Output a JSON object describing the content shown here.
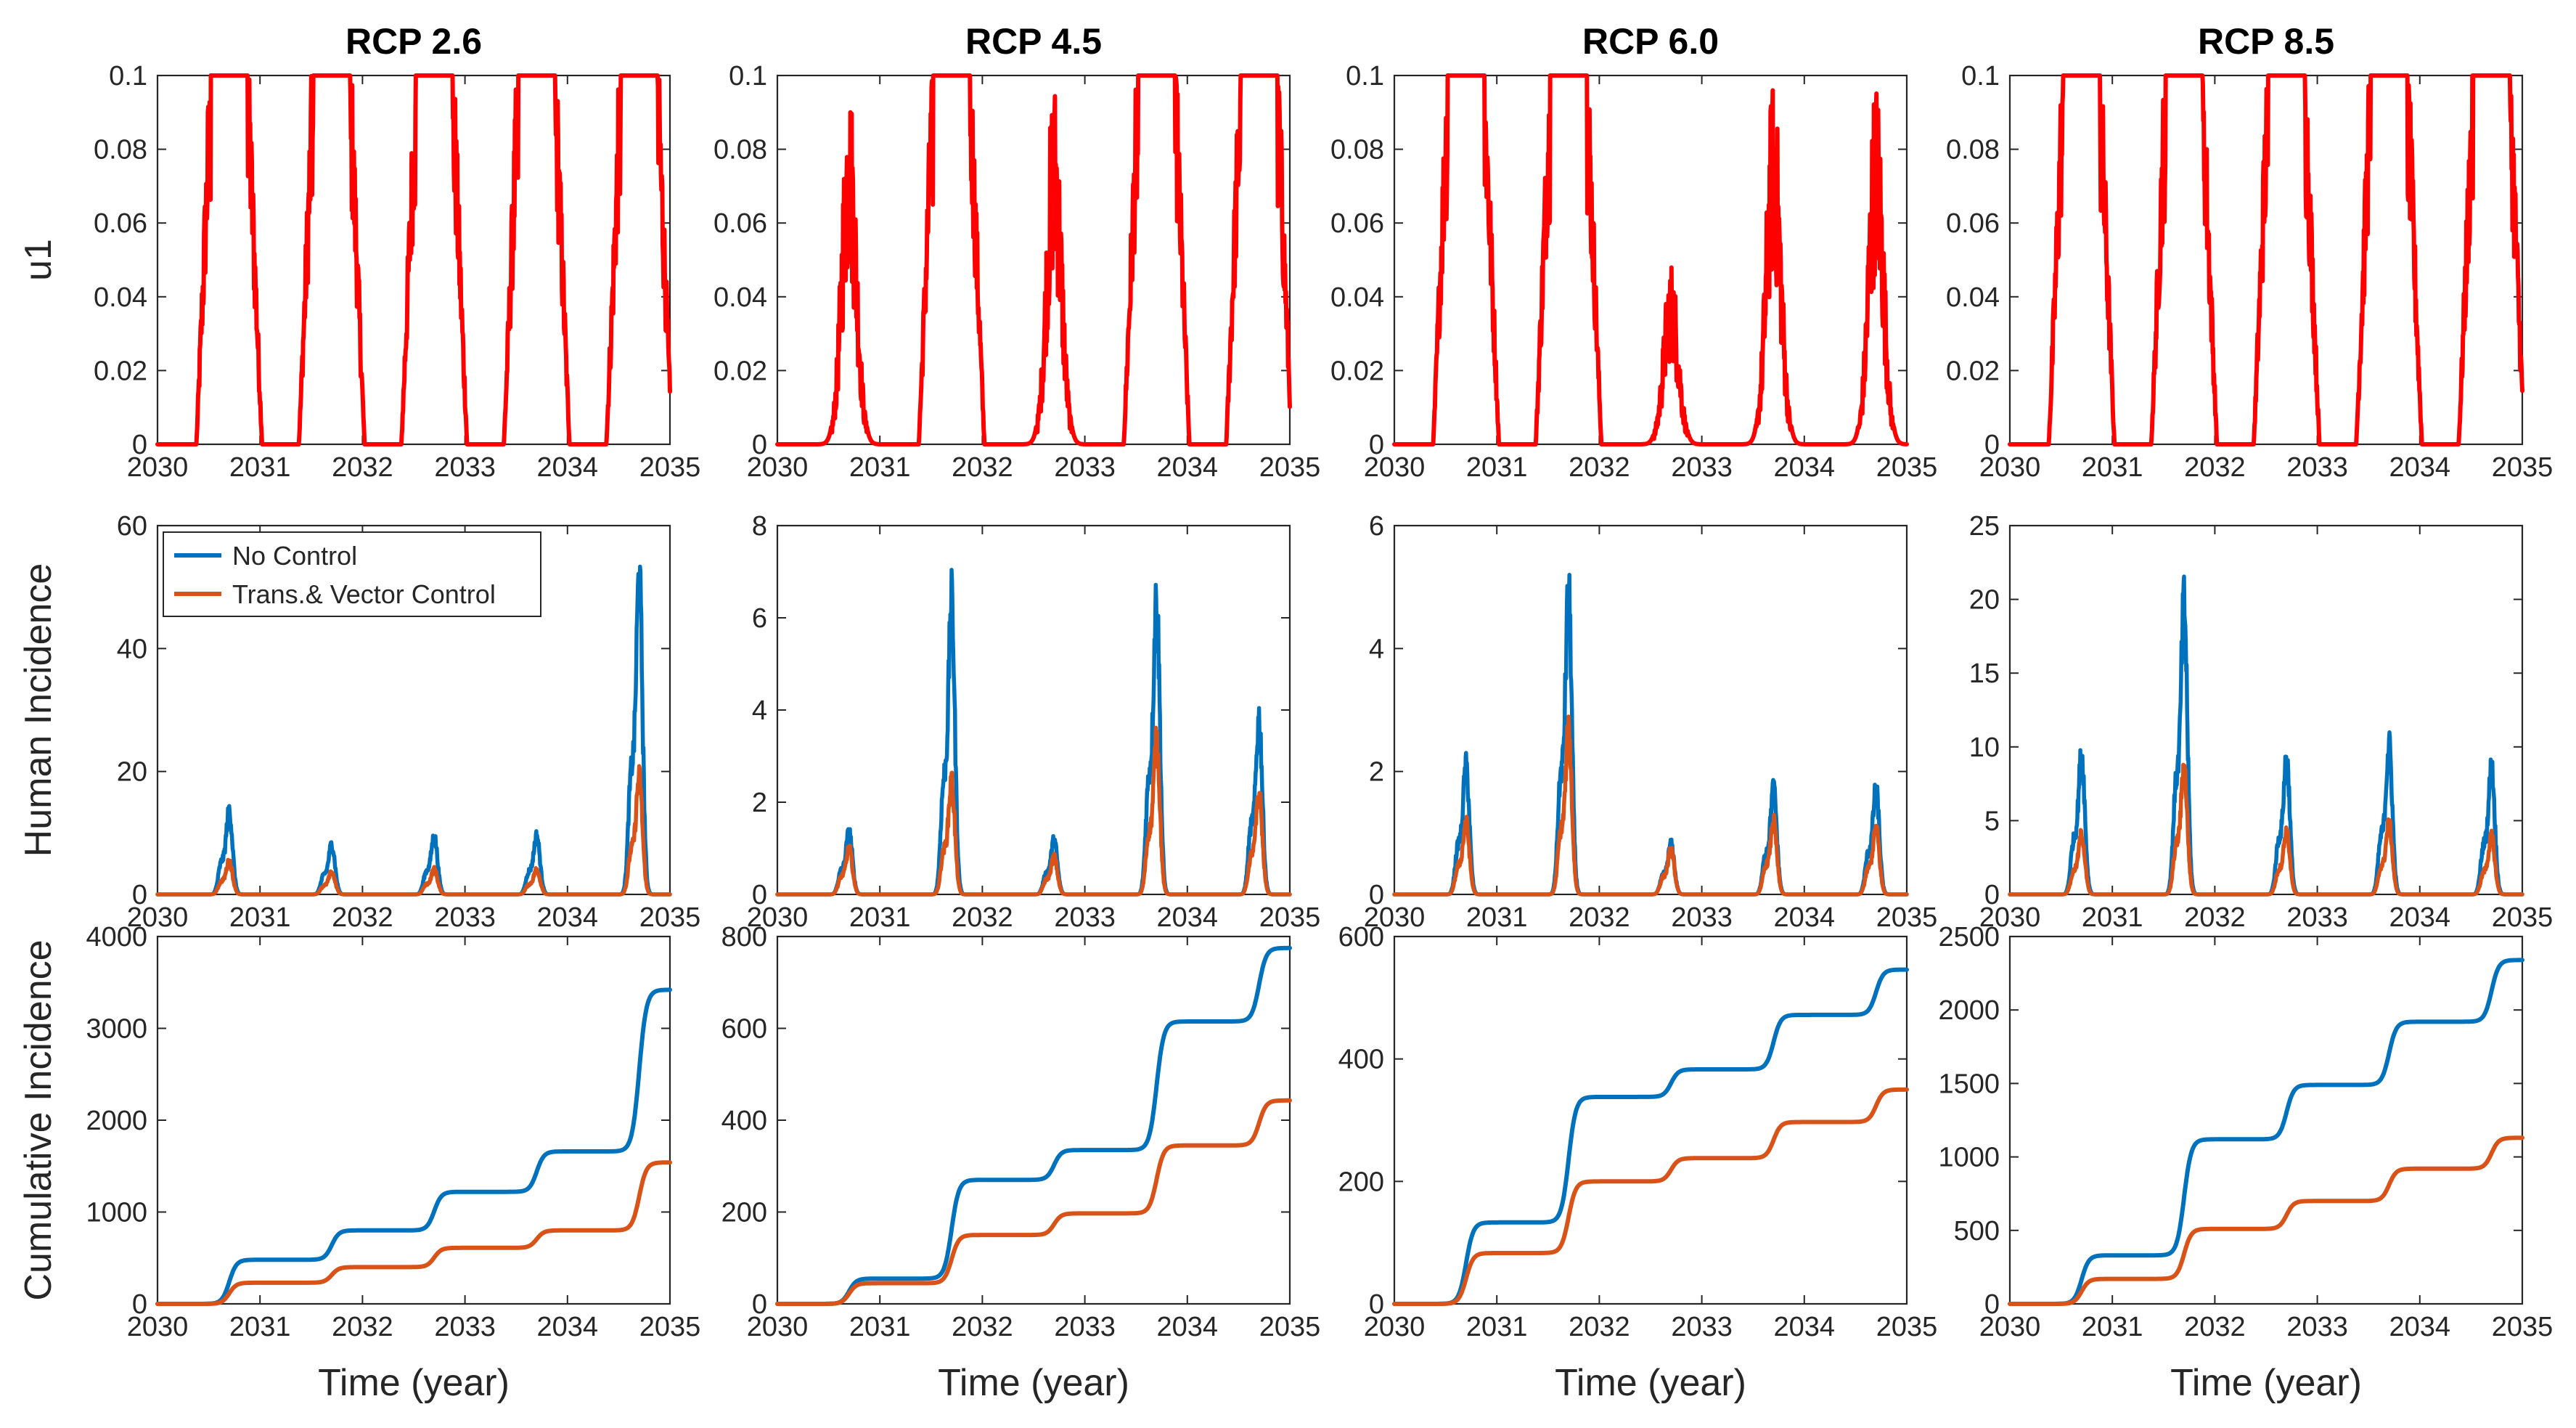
{
  "colors": {
    "u1": "#ff0000",
    "no_control": "#0072bd",
    "control": "#d95319",
    "axis": "#262626"
  },
  "chart_data": {
    "type": "line",
    "layout": "3x4 grid of line plots",
    "column_titles": [
      "RCP 2.6",
      "RCP 4.5",
      "RCP 6.0",
      "RCP 8.5"
    ],
    "row_ylabels": [
      "u1",
      "Human Incidence",
      "Cumulative Incidence"
    ],
    "xlabel": "Time (year)",
    "xlim": [
      2030,
      2035
    ],
    "xticks": [
      2030,
      2031,
      2032,
      2033,
      2034,
      2035
    ],
    "legend": {
      "placement": "top-left",
      "panel": "Human Incidence, RCP 2.6",
      "entries": [
        "No Control",
        "Trans.& Vector Control"
      ]
    },
    "peak_times": [
      2030.7,
      2031.7,
      2032.7,
      2033.7,
      2034.7
    ],
    "rows": [
      {
        "name": "u1",
        "panels": [
          {
            "ylim": [
              0,
              0.1
            ],
            "yticks": [
              0,
              0.02,
              0.04,
              0.06,
              0.08,
              0.1
            ],
            "u1_peaks": [
              0.1,
              0.1,
              0.1,
              0.1,
              0.1
            ],
            "u1_flat": [
              true,
              true,
              true,
              true,
              true
            ]
          },
          {
            "ylim": [
              0,
              0.1
            ],
            "yticks": [
              0,
              0.02,
              0.04,
              0.06,
              0.08,
              0.1
            ],
            "u1_peaks": [
              0.1,
              0.1,
              0.1,
              0.1,
              0.1
            ],
            "u1_flat": [
              false,
              true,
              false,
              true,
              true
            ]
          },
          {
            "ylim": [
              0,
              0.1
            ],
            "yticks": [
              0,
              0.02,
              0.04,
              0.06,
              0.08,
              0.1
            ],
            "u1_peaks": [
              0.1,
              0.1,
              0.05,
              0.1,
              0.1
            ],
            "u1_flat": [
              true,
              true,
              false,
              false,
              false
            ]
          },
          {
            "ylim": [
              0,
              0.1
            ],
            "yticks": [
              0,
              0.02,
              0.04,
              0.06,
              0.08,
              0.1
            ],
            "u1_peaks": [
              0.1,
              0.1,
              0.1,
              0.1,
              0.1
            ],
            "u1_flat": [
              true,
              true,
              true,
              true,
              true
            ]
          }
        ]
      },
      {
        "name": "Human Incidence",
        "panels": [
          {
            "ylim": [
              0,
              60
            ],
            "yticks": [
              0,
              20,
              40,
              60
            ],
            "series": [
              {
                "name": "No Control",
                "peaks": [
                  15,
                  9,
                  10.5,
                  10.5,
                  57
                ]
              },
              {
                "name": "Trans.& Vector Control",
                "peaks": [
                  6,
                  4,
                  4.5,
                  4.5,
                  21
                ]
              }
            ]
          },
          {
            "ylim": [
              0,
              8
            ],
            "yticks": [
              0,
              2,
              4,
              6,
              8
            ],
            "series": [
              {
                "name": "No Control",
                "peaks": [
                  1.5,
                  7,
                  1.3,
                  7.1,
                  4.2
                ]
              },
              {
                "name": "Trans.& Vector Control",
                "peaks": [
                  1.1,
                  2.7,
                  0.9,
                  3.7,
                  2.4
                ]
              }
            ]
          },
          {
            "ylim": [
              0,
              6
            ],
            "yticks": [
              0,
              2,
              4,
              6
            ],
            "series": [
              {
                "name": "No Control",
                "peaks": [
                  2.3,
                  5.4,
                  0.9,
                  1.9,
                  1.9
                ]
              },
              {
                "name": "Trans.& Vector Control",
                "peaks": [
                  1.3,
                  2.9,
                  0.8,
                  1.3,
                  1.2
                ]
              }
            ]
          },
          {
            "ylim": [
              0,
              25
            ],
            "yticks": [
              0,
              5,
              10,
              15,
              20,
              25
            ],
            "series": [
              {
                "name": "No Control",
                "peaks": [
                  10.5,
                  21.8,
                  10.3,
                  11.2,
                  9.5
                ]
              },
              {
                "name": "Trans.& Vector Control",
                "peaks": [
                  4.5,
                  9.5,
                  4.7,
                  5.3,
                  4.3
                ]
              }
            ]
          }
        ]
      },
      {
        "name": "Cumulative Incidence",
        "panels": [
          {
            "ylim": [
              0,
              4000
            ],
            "yticks": [
              0,
              1000,
              2000,
              3000,
              4000
            ],
            "series": [
              {
                "name": "No Control",
                "plateaus": [
                  480,
                  800,
                  1220,
                  1660,
                  3420
                ]
              },
              {
                "name": "Trans.& Vector Control",
                "plateaus": [
                  230,
                  400,
                  610,
                  800,
                  1540
                ]
              }
            ]
          },
          {
            "ylim": [
              0,
              800
            ],
            "yticks": [
              0,
              200,
              400,
              600,
              800
            ],
            "series": [
              {
                "name": "No Control",
                "plateaus": [
                  55,
                  270,
                  335,
                  615,
                  775
                ]
              },
              {
                "name": "Trans.& Vector Control",
                "plateaus": [
                  45,
                  150,
                  197,
                  345,
                  443
                ]
              }
            ]
          },
          {
            "ylim": [
              0,
              600
            ],
            "yticks": [
              0,
              200,
              400,
              600
            ],
            "series": [
              {
                "name": "No Control",
                "plateaus": [
                  133,
                  338,
                  383,
                  472,
                  546
                ]
              },
              {
                "name": "Trans.& Vector Control",
                "plateaus": [
                  83,
                  200,
                  238,
                  297,
                  350
                ]
              }
            ]
          },
          {
            "ylim": [
              0,
              2500
            ],
            "yticks": [
              0,
              500,
              1000,
              1500,
              2000,
              2500
            ],
            "series": [
              {
                "name": "No Control",
                "plateaus": [
                  330,
                  1120,
                  1490,
                  1920,
                  2340
                ]
              },
              {
                "name": "Trans.& Vector Control",
                "plateaus": [
                  170,
                  510,
                  700,
                  920,
                  1130
                ]
              }
            ]
          }
        ]
      }
    ]
  }
}
